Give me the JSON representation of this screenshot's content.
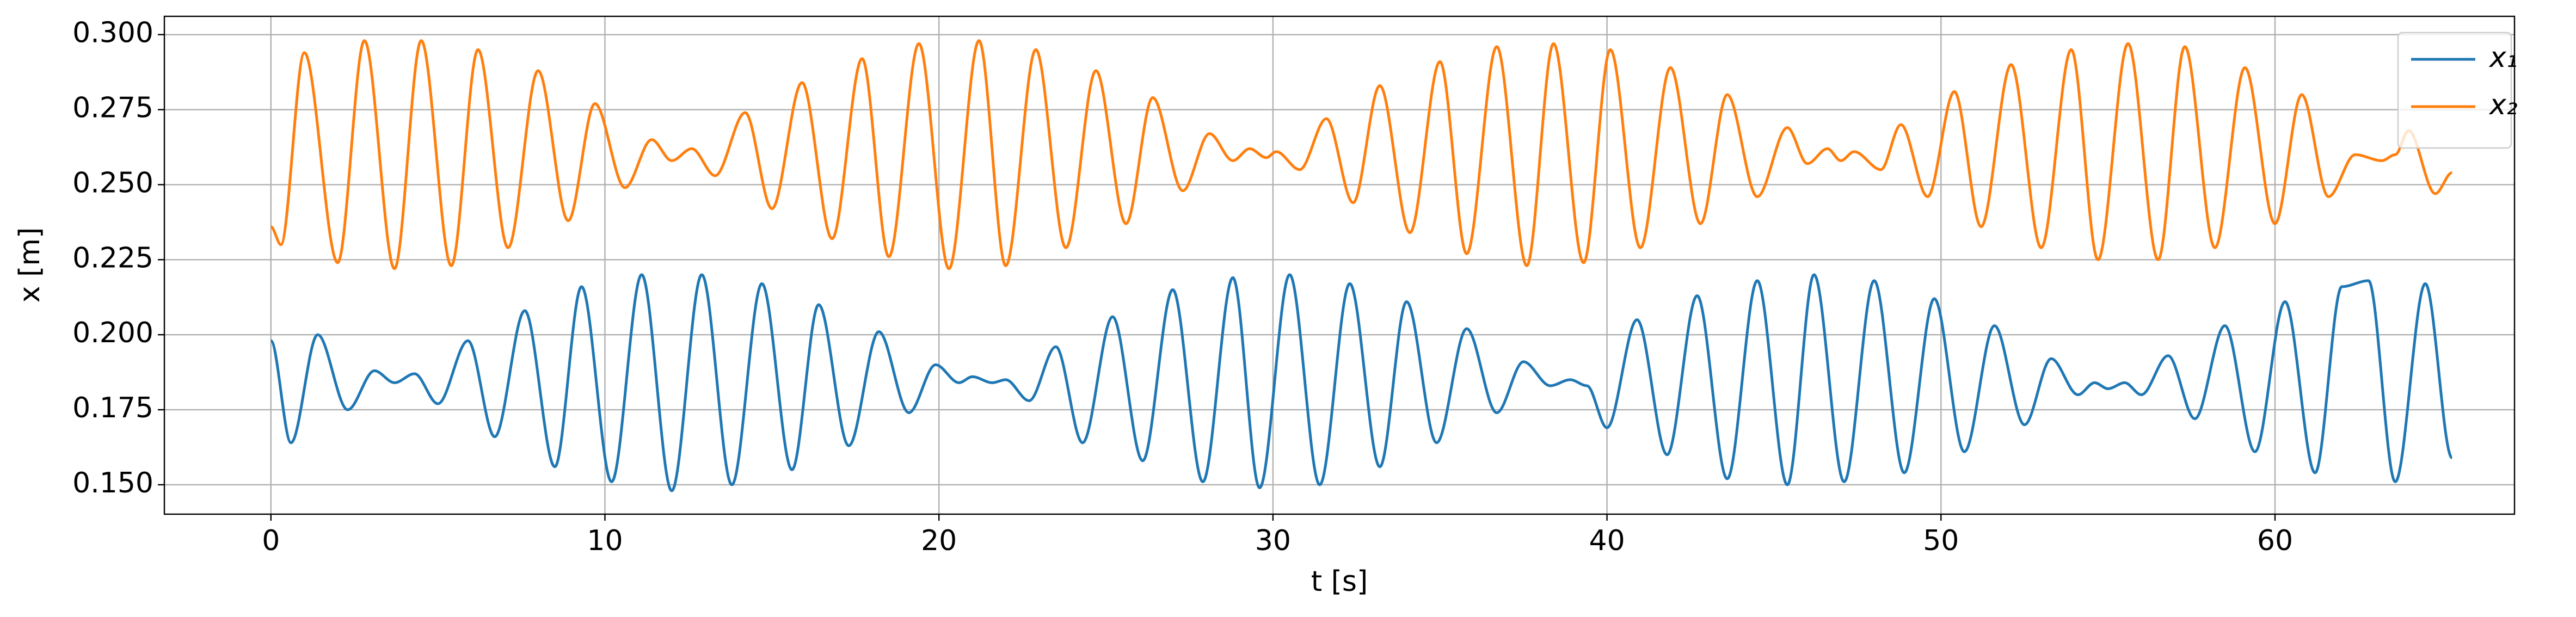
{
  "chart_data": {
    "type": "line",
    "xlabel": "t [s]",
    "ylabel": "x [m]",
    "xlim": [
      -3.19,
      67.17
    ],
    "ylim": [
      0.1402,
      0.3061
    ],
    "xticks": [
      0,
      10,
      20,
      30,
      40,
      50,
      60
    ],
    "yticks": [
      {
        "value": 0.15,
        "label": "0.150"
      },
      {
        "value": 0.175,
        "label": "0.175"
      },
      {
        "value": 0.2,
        "label": "0.200"
      },
      {
        "value": 0.225,
        "label": "0.225"
      },
      {
        "value": 0.25,
        "label": "0.250"
      },
      {
        "value": 0.275,
        "label": "0.275"
      },
      {
        "value": 0.3,
        "label": "0.300"
      }
    ],
    "grid": true,
    "legend": "upper right",
    "series": [
      {
        "name": "x₁",
        "color": "#1f77b4",
        "x": [
          0,
          0.6,
          1.4,
          2.3,
          3.1,
          3.7,
          4.3,
          5.0,
          5.9,
          6.7,
          7.6,
          8.5,
          9.3,
          10.2,
          11.1,
          12.0,
          12.9,
          13.8,
          14.7,
          15.6,
          16.4,
          17.3,
          18.2,
          19.1,
          19.9,
          20.6,
          21.0,
          21.6,
          22.0,
          22.7,
          23.5,
          24.3,
          25.2,
          26.1,
          27.0,
          27.9,
          28.8,
          29.6,
          30.5,
          31.4,
          32.3,
          33.2,
          34.0,
          34.9,
          35.8,
          36.7,
          37.5,
          38.3,
          38.9,
          39.4,
          40.0,
          40.9,
          41.8,
          42.7,
          43.6,
          44.5,
          45.4,
          46.2,
          47.1,
          48.0,
          48.9,
          49.8,
          50.7,
          51.6,
          52.5,
          53.3,
          54.1,
          54.6,
          55.0,
          55.5,
          56.0,
          56.8,
          57.6,
          58.5,
          59.4,
          60.3,
          61.2,
          62.0,
          62.8,
          63.6,
          64.5,
          65.3
        ],
        "values": [
          0.198,
          0.164,
          0.2,
          0.175,
          0.188,
          0.184,
          0.187,
          0.177,
          0.198,
          0.166,
          0.208,
          0.156,
          0.216,
          0.151,
          0.22,
          0.148,
          0.22,
          0.15,
          0.217,
          0.155,
          0.21,
          0.163,
          0.201,
          0.174,
          0.19,
          0.184,
          0.186,
          0.184,
          0.185,
          0.178,
          0.196,
          0.164,
          0.206,
          0.158,
          0.215,
          0.151,
          0.219,
          0.149,
          0.22,
          0.15,
          0.217,
          0.156,
          0.211,
          0.164,
          0.202,
          0.174,
          0.191,
          0.183,
          0.185,
          0.183,
          0.169,
          0.205,
          0.16,
          0.213,
          0.152,
          0.218,
          0.15,
          0.22,
          0.151,
          0.218,
          0.154,
          0.212,
          0.161,
          0.203,
          0.17,
          0.192,
          0.18,
          0.184,
          0.182,
          0.184,
          0.18,
          0.193,
          0.172,
          0.203,
          0.161,
          0.211,
          0.154,
          0.216,
          0.218,
          0.151,
          0.217,
          0.159
        ]
      },
      {
        "name": "x₂",
        "color": "#ff7f0e",
        "x": [
          0,
          0.3,
          1.0,
          2.0,
          2.8,
          3.7,
          4.5,
          5.4,
          6.2,
          7.1,
          8.0,
          8.9,
          9.7,
          10.6,
          11.4,
          12.0,
          12.6,
          13.3,
          14.2,
          15.0,
          15.9,
          16.8,
          17.7,
          18.5,
          19.4,
          20.3,
          21.2,
          22.0,
          22.9,
          23.8,
          24.7,
          25.6,
          26.4,
          27.3,
          28.1,
          28.8,
          29.3,
          29.8,
          30.1,
          30.8,
          31.6,
          32.4,
          33.2,
          34.1,
          35.0,
          35.8,
          36.7,
          37.6,
          38.4,
          39.3,
          40.1,
          41.0,
          41.9,
          42.8,
          43.6,
          44.5,
          45.4,
          46.0,
          46.6,
          47.0,
          47.4,
          48.2,
          48.8,
          49.6,
          50.4,
          51.2,
          52.1,
          53.0,
          53.9,
          54.7,
          55.6,
          56.5,
          57.3,
          58.2,
          59.1,
          60.0,
          60.8,
          61.6,
          62.4,
          63.2,
          63.6,
          64.0,
          64.8,
          65.3
        ],
        "values": [
          0.236,
          0.23,
          0.294,
          0.224,
          0.298,
          0.222,
          0.298,
          0.223,
          0.295,
          0.229,
          0.288,
          0.238,
          0.277,
          0.249,
          0.265,
          0.258,
          0.262,
          0.253,
          0.274,
          0.242,
          0.284,
          0.232,
          0.292,
          0.226,
          0.297,
          0.222,
          0.298,
          0.223,
          0.295,
          0.229,
          0.288,
          0.237,
          0.279,
          0.248,
          0.267,
          0.258,
          0.262,
          0.259,
          0.261,
          0.255,
          0.272,
          0.244,
          0.283,
          0.234,
          0.291,
          0.227,
          0.296,
          0.223,
          0.297,
          0.224,
          0.295,
          0.229,
          0.289,
          0.237,
          0.28,
          0.246,
          0.269,
          0.257,
          0.262,
          0.258,
          0.261,
          0.255,
          0.27,
          0.246,
          0.281,
          0.236,
          0.29,
          0.229,
          0.295,
          0.225,
          0.297,
          0.225,
          0.296,
          0.229,
          0.289,
          0.237,
          0.28,
          0.246,
          0.26,
          0.258,
          0.26,
          0.268,
          0.247,
          0.254
        ]
      }
    ]
  }
}
